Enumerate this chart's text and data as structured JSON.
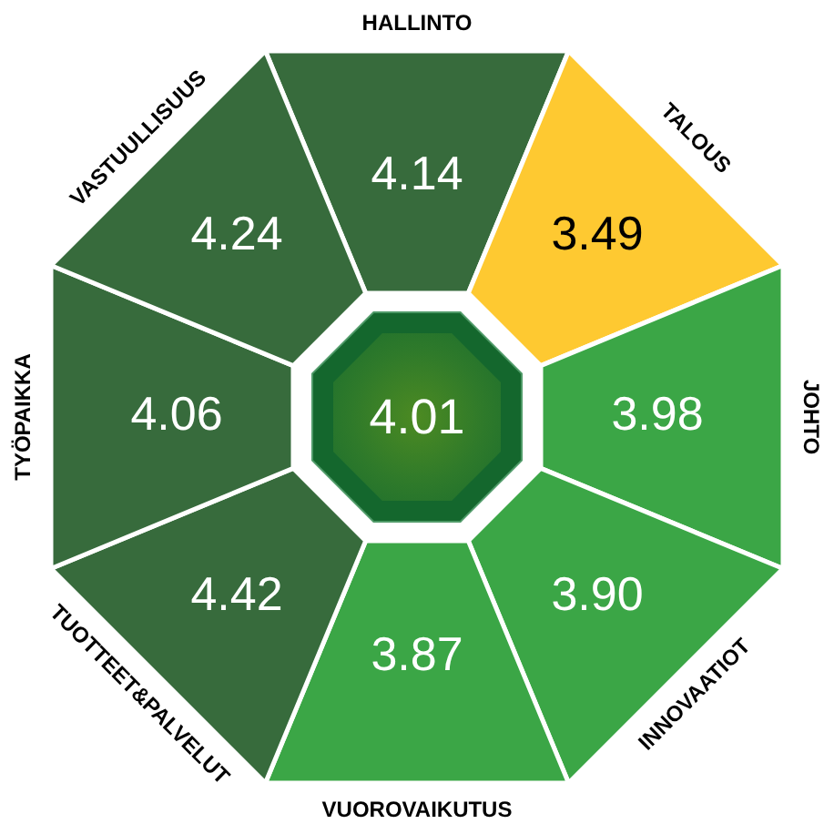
{
  "chart_data": {
    "type": "other",
    "categories": [
      "HALLINTO",
      "TALOUS",
      "JOHTO",
      "INNOVAATIOT",
      "VUOROVAIKUTUS",
      "TUOTTEET&PALVELUT",
      "TYÖPAIKKA",
      "VASTUULLISUUS"
    ],
    "values": [
      4.14,
      3.49,
      3.98,
      3.9,
      3.87,
      4.42,
      4.06,
      4.24
    ],
    "value_labels": [
      "4.14",
      "3.49",
      "3.98",
      "3.90",
      "3.87",
      "4.42",
      "4.06",
      "4.24"
    ],
    "colors": [
      "#376b3c",
      "#fec931",
      "#3ba646",
      "#3ba646",
      "#3ba646",
      "#376b3c",
      "#376b3c",
      "#376b3c"
    ],
    "annotations": [
      "4.01"
    ]
  }
}
